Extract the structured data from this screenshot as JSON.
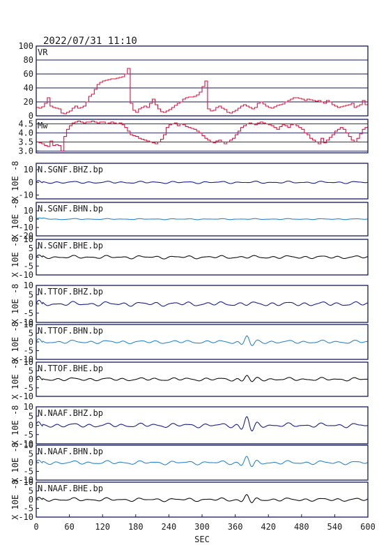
{
  "header": {
    "datetime": "2022/07/31  11:10"
  },
  "colors": {
    "frame": "#14185a",
    "red": "#e0103c",
    "navy": "#18208a",
    "lightblue": "#2a86cf",
    "black": "#101010"
  },
  "chart_data": [
    {
      "type": "line",
      "id": "vr",
      "panel_label": "VR",
      "ylim": [
        0,
        100
      ],
      "y_ticks": [
        "100",
        "80",
        "60",
        "40",
        "20",
        "0"
      ],
      "grid": true,
      "color": "#e0103c",
      "x": [
        0,
        5,
        10,
        15,
        20,
        25,
        30,
        35,
        40,
        45,
        50,
        55,
        60,
        65,
        70,
        75,
        80,
        85,
        90,
        95,
        100,
        105,
        110,
        115,
        120,
        125,
        130,
        135,
        140,
        145,
        150,
        155,
        160,
        165,
        170,
        175,
        180,
        185,
        190,
        195,
        200,
        205,
        210,
        215,
        220,
        225,
        230,
        235,
        240,
        245,
        250,
        255,
        260,
        265,
        270,
        275,
        280,
        285,
        290,
        295,
        300,
        305,
        310,
        315,
        320,
        325,
        330,
        335,
        340,
        345,
        350,
        355,
        360,
        365,
        370,
        375,
        380,
        385,
        390,
        395,
        400,
        405,
        410,
        415,
        420,
        425,
        430,
        435,
        440,
        445,
        450,
        455,
        460,
        465,
        470,
        475,
        480,
        485,
        490,
        495,
        500,
        505,
        510,
        515,
        520,
        525,
        530,
        535,
        540,
        545,
        550,
        555,
        560,
        565,
        570,
        575,
        580,
        585,
        590,
        595,
        600
      ],
      "values": [
        12,
        11,
        13,
        18,
        26,
        14,
        12,
        11,
        10,
        4,
        3,
        5,
        7,
        11,
        14,
        11,
        12,
        14,
        20,
        28,
        31,
        38,
        45,
        48,
        50,
        51,
        52,
        53,
        53,
        54,
        55,
        56,
        60,
        68,
        18,
        8,
        5,
        10,
        12,
        14,
        12,
        18,
        24,
        16,
        10,
        6,
        5,
        7,
        9,
        12,
        15,
        18,
        20,
        24,
        26,
        27,
        27,
        28,
        30,
        34,
        42,
        50,
        10,
        7,
        8,
        12,
        14,
        11,
        9,
        5,
        4,
        6,
        8,
        11,
        14,
        16,
        14,
        12,
        10,
        12,
        18,
        20,
        17,
        14,
        12,
        11,
        13,
        15,
        16,
        17,
        20,
        22,
        24,
        26,
        26,
        25,
        24,
        22,
        24,
        23,
        22,
        21,
        22,
        20,
        18,
        22,
        20,
        16,
        14,
        12,
        13,
        14,
        15,
        16,
        18,
        12,
        14,
        16,
        22,
        16,
        18
      ]
    },
    {
      "type": "line",
      "id": "mw",
      "panel_label": "Mw",
      "ylim": [
        2.9,
        4.75
      ],
      "y_ticks": [
        "4.5",
        "4.0",
        "3.5",
        "3.0"
      ],
      "grid": true,
      "color": "#e0103c",
      "x": [
        0,
        5,
        10,
        15,
        20,
        25,
        30,
        35,
        40,
        45,
        50,
        55,
        60,
        65,
        70,
        75,
        80,
        85,
        90,
        95,
        100,
        105,
        110,
        115,
        120,
        125,
        130,
        135,
        140,
        145,
        150,
        155,
        160,
        165,
        170,
        175,
        180,
        185,
        190,
        195,
        200,
        205,
        210,
        215,
        220,
        225,
        230,
        235,
        240,
        245,
        250,
        255,
        260,
        265,
        270,
        275,
        280,
        285,
        290,
        295,
        300,
        305,
        310,
        315,
        320,
        325,
        330,
        335,
        340,
        345,
        350,
        355,
        360,
        365,
        370,
        375,
        380,
        385,
        390,
        395,
        400,
        405,
        410,
        415,
        420,
        425,
        430,
        435,
        440,
        445,
        450,
        455,
        460,
        465,
        470,
        475,
        480,
        485,
        490,
        495,
        500,
        505,
        510,
        515,
        520,
        525,
        530,
        535,
        540,
        545,
        550,
        555,
        560,
        565,
        570,
        575,
        580,
        585,
        590,
        595,
        600
      ],
      "values": [
        3.5,
        3.45,
        3.4,
        3.3,
        3.25,
        3.55,
        3.3,
        3.35,
        3.3,
        3.0,
        3.8,
        4.2,
        4.4,
        4.55,
        4.6,
        4.65,
        4.6,
        4.55,
        4.6,
        4.6,
        4.65,
        4.6,
        4.55,
        4.6,
        4.6,
        4.5,
        4.55,
        4.6,
        4.55,
        4.5,
        4.55,
        4.45,
        4.3,
        4.1,
        3.9,
        3.85,
        3.8,
        3.7,
        3.65,
        3.6,
        3.55,
        3.5,
        3.45,
        3.4,
        3.5,
        3.65,
        3.9,
        4.3,
        4.45,
        4.5,
        4.55,
        4.4,
        4.5,
        4.45,
        4.35,
        4.3,
        4.25,
        4.2,
        4.1,
        4.0,
        3.85,
        3.7,
        3.6,
        3.5,
        3.45,
        3.55,
        3.6,
        3.5,
        3.4,
        3.5,
        3.6,
        3.7,
        3.9,
        4.1,
        4.3,
        4.4,
        4.5,
        4.55,
        4.5,
        4.45,
        4.55,
        4.6,
        4.55,
        4.5,
        4.45,
        4.4,
        4.3,
        4.2,
        4.35,
        4.45,
        4.4,
        4.3,
        4.45,
        4.5,
        4.4,
        4.3,
        4.2,
        4.0,
        3.9,
        3.7,
        3.6,
        3.5,
        3.4,
        3.7,
        3.45,
        3.6,
        3.75,
        3.9,
        4.1,
        4.2,
        4.3,
        4.2,
        4.0,
        3.8,
        3.6,
        3.5,
        3.7,
        3.95,
        4.2,
        4.3,
        4.3
      ]
    },
    {
      "type": "line",
      "id": "sgnf-bhz",
      "panel_label": "N.SGNF.BHZ.bp",
      "ylim": [
        -13,
        15
      ],
      "y_ticks": [
        "10",
        "0",
        "-10"
      ],
      "ylabel": "X 10E -8",
      "color": "#18208a",
      "amplitude": 0.9,
      "events": []
    },
    {
      "type": "line",
      "id": "sgnf-bhn",
      "panel_label": "N.SGNF.BHN.bp",
      "ylim": [
        -20,
        20
      ],
      "y_ticks": [
        "10",
        "0",
        "-10",
        "-20"
      ],
      "ylabel": "X 10E -8",
      "color": "#2a86cf",
      "amplitude": 0.6,
      "events": []
    },
    {
      "type": "line",
      "id": "sgnf-bhe",
      "panel_label": "N.SGNF.BHE.bp",
      "ylim": [
        -10,
        10
      ],
      "y_ticks": [
        "10",
        "5",
        "0",
        "-5",
        "-10"
      ],
      "ylabel": "X 10E -8",
      "color": "#101010",
      "amplitude": 0.9,
      "events": []
    },
    {
      "type": "line",
      "id": "ttof-bhz",
      "panel_label": "N.TTOF.BHZ.bp",
      "ylim": [
        -10,
        10
      ],
      "y_ticks": [
        "10",
        "5",
        "0",
        "-5",
        "-10"
      ],
      "ylabel": "X 10E -8",
      "color": "#18208a",
      "amplitude": 1.2,
      "events": []
    },
    {
      "type": "line",
      "id": "ttof-bhn",
      "panel_label": "N.TTOF.BHN.bp",
      "ylim": [
        -10,
        10
      ],
      "y_ticks": [
        "10",
        "5",
        "0",
        "-5",
        "-10"
      ],
      "ylabel": "X 10E -8",
      "color": "#2a86cf",
      "amplitude": 1.0,
      "events": [
        {
          "t": 375,
          "a": 4.0
        }
      ]
    },
    {
      "type": "line",
      "id": "ttof-bhe",
      "panel_label": "N.TTOF.BHE.bp",
      "ylim": [
        -10,
        10
      ],
      "y_ticks": [
        "10",
        "5",
        "0",
        "-5",
        "-10"
      ],
      "ylabel": "X 10E -8",
      "color": "#101010",
      "amplitude": 1.0,
      "events": [
        {
          "t": 375,
          "a": 2.5
        }
      ]
    },
    {
      "type": "line",
      "id": "naaf-bhz",
      "panel_label": "N.NAAF.BHZ.bp",
      "ylim": [
        -10,
        10
      ],
      "y_ticks": [
        "10",
        "5",
        "0",
        "-5",
        "-10"
      ],
      "ylabel": "X 10E -8",
      "color": "#18208a",
      "amplitude": 1.2,
      "events": [
        {
          "t": 375,
          "a": 5.0
        }
      ]
    },
    {
      "type": "line",
      "id": "naaf-bhn",
      "panel_label": "N.NAAF.BHN.bp",
      "ylim": [
        -10,
        10
      ],
      "y_ticks": [
        "10",
        "5",
        "0",
        "-5",
        "-10"
      ],
      "ylabel": "X 10E -8",
      "color": "#2a86cf",
      "amplitude": 1.1,
      "events": [
        {
          "t": 375,
          "a": 4.0
        }
      ]
    },
    {
      "type": "line",
      "id": "naaf-bhe",
      "panel_label": "N.NAAF.BHE.bp",
      "ylim": [
        -10,
        10
      ],
      "y_ticks": [
        "10",
        "5",
        "0",
        "-5",
        "-10"
      ],
      "ylabel": "X 10E -8",
      "color": "#101010",
      "amplitude": 1.0,
      "events": [
        {
          "t": 375,
          "a": 3.5
        }
      ]
    }
  ],
  "x_axis": {
    "xlim": [
      0,
      600
    ],
    "ticks": [
      "0",
      "60",
      "120",
      "180",
      "240",
      "300",
      "360",
      "420",
      "480",
      "540",
      "600"
    ],
    "label": "SEC"
  }
}
